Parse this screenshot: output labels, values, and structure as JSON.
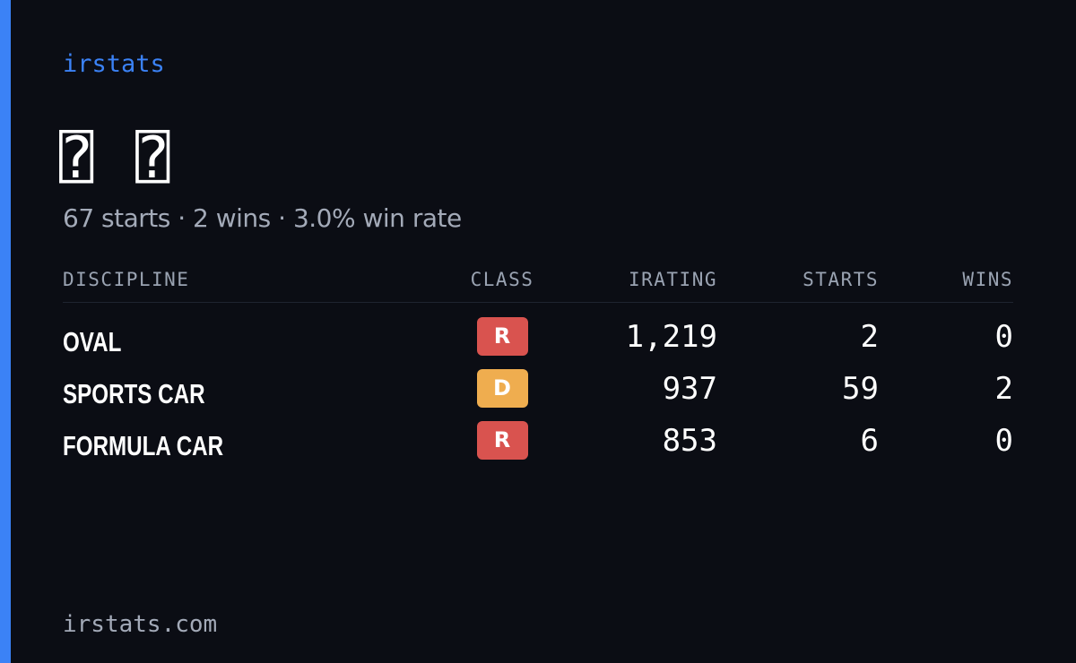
{
  "header": {
    "brand": "irstats",
    "name": "⍰ ⍰",
    "summary": "67 starts · 2 wins · 3.0% win rate"
  },
  "table": {
    "columns": [
      "DISCIPLINE",
      "CLASS",
      "IRATING",
      "STARTS",
      "WINS"
    ],
    "rows": [
      [
        "OVAL",
        "R",
        "1,219",
        "2",
        "0"
      ],
      [
        "SPORTS CAR",
        "D",
        "937",
        "59",
        "2"
      ],
      [
        "FORMULA CAR",
        "R",
        "853",
        "6",
        "0"
      ]
    ]
  },
  "footer": {
    "site": "irstats.com"
  }
}
